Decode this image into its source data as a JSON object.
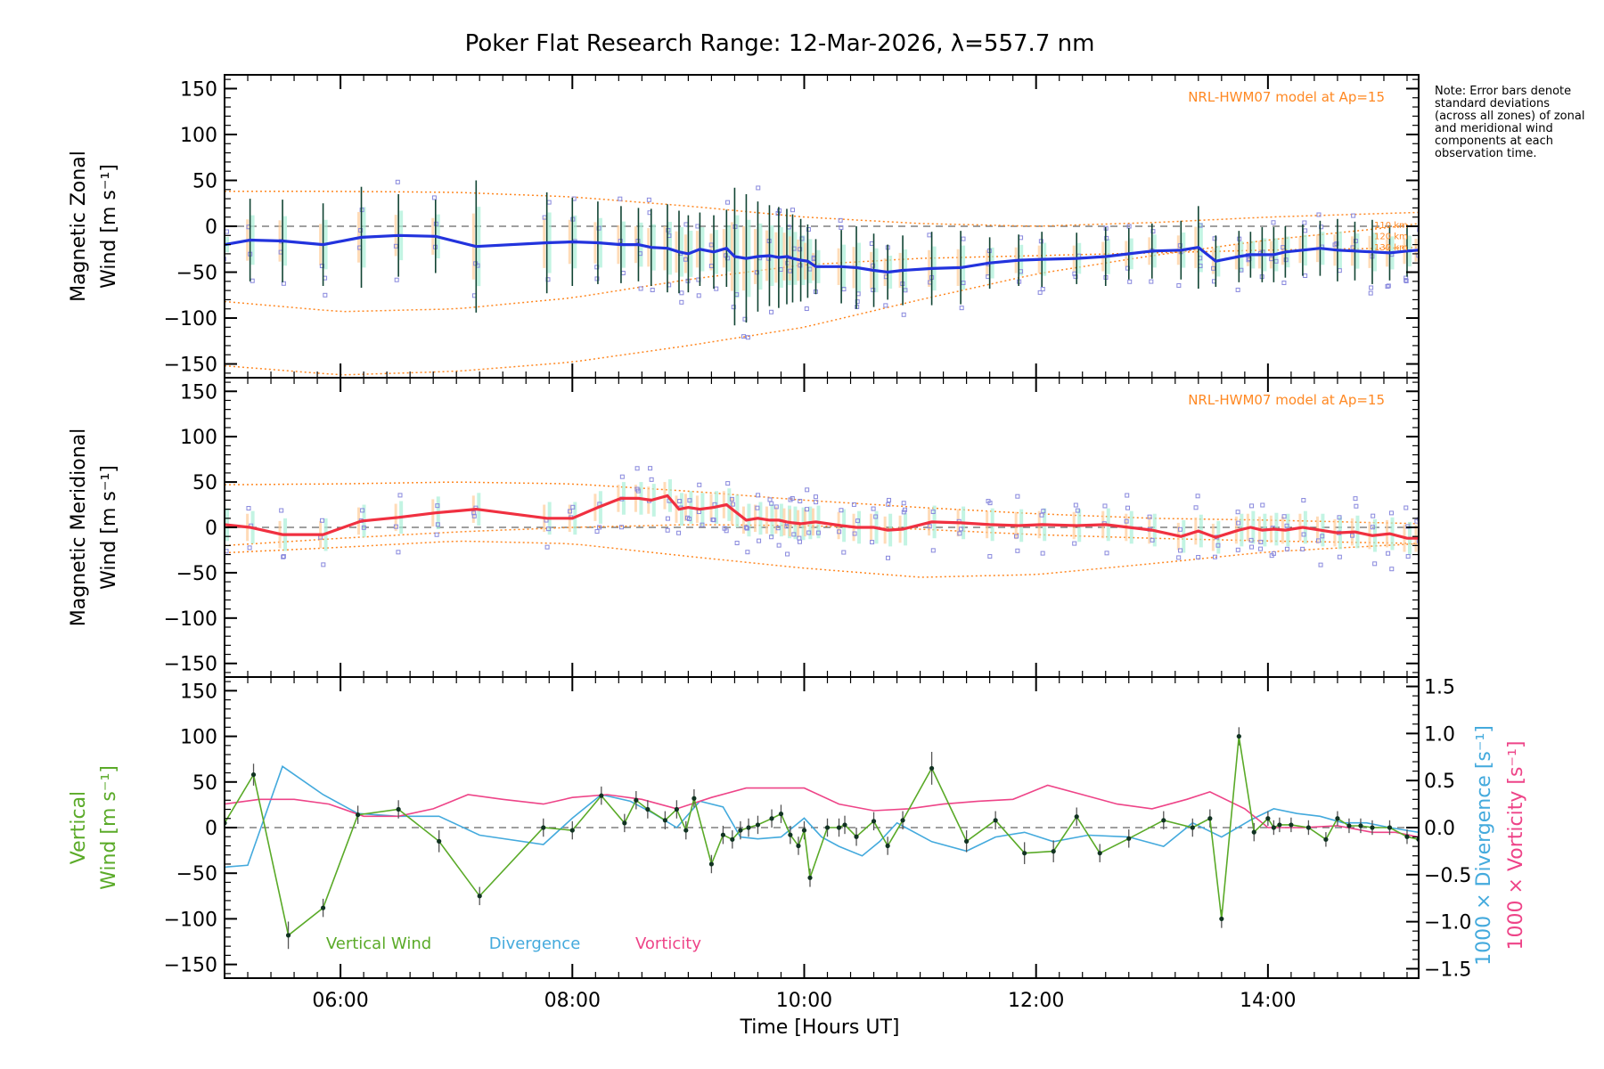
{
  "figure": {
    "title": "Poker Flat Research Range: 12-Mar-2026, λ=557.7 nm",
    "note": "Note: Error bars denote standard deviations (across all zones) of zonal and meridional wind components at each observation time.",
    "x_axis_title": "Time [Hours UT]",
    "colors": {
      "zonal": "#2233dd",
      "meridional": "#f03040",
      "vertical": "#5aaa28",
      "divergence": "#44aadd",
      "vorticity": "#ee4488",
      "model": "#ff8822",
      "scatter": "#8888dd",
      "errorbar": "#114433"
    }
  },
  "chart_data": [
    {
      "type": "line",
      "panel": "zonal",
      "ylabel": [
        "Magnetic Zonal",
        "Wind [m s⁻¹]"
      ],
      "annotation": "NRL-HWM07 model at Ap=15",
      "model_level_labels": [
        "110 km",
        "120 km",
        "130 km"
      ],
      "xlim": [
        5.0,
        15.3
      ],
      "ylim": [
        -165,
        165
      ],
      "x_ticks": [
        "06:00",
        "08:00",
        "10:00",
        "12:00",
        "14:00"
      ],
      "y_ticks": [
        -150,
        -100,
        -50,
        0,
        50,
        100,
        150
      ],
      "series": [
        {
          "name": "Zonal wind",
          "x": [
            5.0,
            5.22,
            5.5,
            5.85,
            6.18,
            6.5,
            6.82,
            7.17,
            7.78,
            8.0,
            8.22,
            8.42,
            8.57,
            8.68,
            8.82,
            8.92,
            9.0,
            9.1,
            9.22,
            9.33,
            9.4,
            9.5,
            9.6,
            9.7,
            9.78,
            9.85,
            9.9,
            9.97,
            10.03,
            10.1,
            10.32,
            10.45,
            10.6,
            10.72,
            10.85,
            11.1,
            11.35,
            11.6,
            11.85,
            12.05,
            12.35,
            12.6,
            12.8,
            13.0,
            13.25,
            13.4,
            13.55,
            13.75,
            13.85,
            13.95,
            14.05,
            14.15,
            14.3,
            14.45,
            14.6,
            14.75,
            14.9,
            15.05,
            15.2,
            15.3
          ],
          "y": [
            -20,
            -15,
            -16,
            -20,
            -12,
            -10,
            -11,
            -22,
            -18,
            -17,
            -18,
            -20,
            -20,
            -23,
            -24,
            -28,
            -30,
            -25,
            -28,
            -24,
            -33,
            -35,
            -33,
            -32,
            -34,
            -33,
            -35,
            -37,
            -38,
            -44,
            -44,
            -45,
            -48,
            -50,
            -48,
            -46,
            -45,
            -40,
            -37,
            -36,
            -35,
            -33,
            -30,
            -27,
            -26,
            -23,
            -38,
            -33,
            -31,
            -31,
            -31,
            -28,
            -26,
            -24,
            -26,
            -27,
            -28,
            -29,
            -27,
            -26
          ],
          "errors": [
            14,
            45,
            45,
            45,
            55,
            45,
            40,
            72,
            55,
            48,
            45,
            42,
            40,
            42,
            48,
            45,
            42,
            40,
            40,
            42,
            75,
            70,
            60,
            55,
            55,
            52,
            48,
            45,
            40,
            30,
            40,
            45,
            40,
            30,
            38,
            40,
            40,
            28,
            28,
            30,
            28,
            32,
            28,
            30,
            32,
            45,
            28,
            28,
            25,
            30,
            30,
            28,
            28,
            30,
            34,
            32,
            35,
            30,
            28,
            25
          ]
        },
        {
          "name": "NRL-HWM07 model (110 km)",
          "x": [
            5.0,
            6.0,
            7.0,
            8.0,
            9.0,
            10.0,
            11.0,
            12.0,
            13.0,
            14.0,
            15.0,
            15.3
          ],
          "y": [
            38,
            38,
            37,
            32,
            22,
            10,
            3,
            0,
            4,
            10,
            14,
            15
          ]
        },
        {
          "name": "NRL-HWM07 model (120 km)",
          "x": [
            5.0,
            6.0,
            7.0,
            8.0,
            9.0,
            10.0,
            11.0,
            12.0,
            13.0,
            14.0,
            15.0,
            15.3
          ],
          "y": [
            -82,
            -93,
            -90,
            -78,
            -58,
            -42,
            -35,
            -32,
            -29,
            -26,
            -24,
            -23
          ]
        },
        {
          "name": "NRL-HWM07 model (130 km)",
          "x": [
            5.0,
            6.0,
            7.0,
            8.0,
            9.0,
            10.0,
            11.0,
            12.0,
            13.0,
            14.0,
            15.0,
            15.3
          ],
          "y": [
            -152,
            -162,
            -158,
            -148,
            -130,
            -110,
            -80,
            -52,
            -32,
            -15,
            -2,
            3
          ]
        }
      ]
    },
    {
      "type": "line",
      "panel": "meridional",
      "ylabel": [
        "Magnetic Meridional",
        "Wind [m s⁻¹]"
      ],
      "annotation": "NRL-HWM07 model at Ap=15",
      "xlim": [
        5.0,
        15.3
      ],
      "ylim": [
        -165,
        165
      ],
      "y_ticks": [
        -150,
        -100,
        -50,
        0,
        50,
        100,
        150
      ],
      "series": [
        {
          "name": "Meridional wind",
          "x": [
            5.0,
            5.22,
            5.5,
            5.85,
            6.18,
            6.5,
            6.82,
            7.17,
            7.78,
            8.0,
            8.22,
            8.42,
            8.57,
            8.68,
            8.82,
            8.92,
            9.0,
            9.1,
            9.22,
            9.33,
            9.4,
            9.5,
            9.6,
            9.7,
            9.78,
            9.85,
            9.9,
            9.97,
            10.03,
            10.1,
            10.32,
            10.45,
            10.6,
            10.72,
            10.85,
            11.1,
            11.35,
            11.6,
            11.85,
            12.05,
            12.35,
            12.6,
            12.8,
            13.0,
            13.25,
            13.4,
            13.55,
            13.75,
            13.85,
            13.95,
            14.05,
            14.15,
            14.3,
            14.45,
            14.6,
            14.75,
            14.9,
            15.05,
            15.2,
            15.3
          ],
          "y": [
            3,
            0,
            -8,
            -8,
            7,
            11,
            16,
            20,
            10,
            10,
            22,
            32,
            32,
            30,
            35,
            20,
            22,
            20,
            22,
            25,
            18,
            8,
            10,
            8,
            8,
            6,
            5,
            4,
            5,
            6,
            2,
            0,
            0,
            -3,
            -2,
            6,
            5,
            3,
            2,
            3,
            2,
            3,
            0,
            -3,
            -10,
            -4,
            -11,
            -3,
            0,
            -3,
            -2,
            -3,
            0,
            -3,
            -6,
            -5,
            -9,
            -7,
            -12,
            -12
          ]
        },
        {
          "name": "NRL-HWM07 model (110 km)",
          "x": [
            5.0,
            6.0,
            7.0,
            8.0,
            9.0,
            10.0,
            11.0,
            12.0,
            13.0,
            14.0,
            15.0,
            15.3
          ],
          "y": [
            47,
            48,
            50,
            48,
            40,
            30,
            22,
            15,
            10,
            8,
            5,
            4
          ]
        },
        {
          "name": "NRL-HWM07 model (120 km)",
          "x": [
            5.0,
            6.0,
            7.0,
            8.0,
            9.0,
            10.0,
            11.0,
            12.0,
            13.0,
            14.0,
            15.0,
            15.3
          ],
          "y": [
            -20,
            -12,
            -5,
            0,
            3,
            2,
            -2,
            -8,
            -12,
            -15,
            -17,
            -18
          ]
        },
        {
          "name": "NRL-HWM07 model (130 km)",
          "x": [
            5.0,
            6.0,
            7.0,
            8.0,
            9.0,
            10.0,
            11.0,
            12.0,
            13.0,
            14.0,
            15.0,
            15.3
          ],
          "y": [
            -28,
            -22,
            -15,
            -18,
            -32,
            -45,
            -55,
            -52,
            -40,
            -27,
            -20,
            -18
          ]
        }
      ]
    },
    {
      "type": "line",
      "panel": "vertical",
      "ylabel": [
        "Vertical",
        "Wind [m s⁻¹]"
      ],
      "right_ylabel_divergence": "1000 × Divergence [s⁻¹]",
      "right_ylabel_vorticity": "1000 × Vorticity [s⁻¹]",
      "legend": [
        "Vertical Wind",
        "Divergence",
        "Vorticity"
      ],
      "xlim": [
        5.0,
        15.3
      ],
      "ylim": [
        -165,
        165
      ],
      "y_ticks": [
        -150,
        -100,
        -50,
        0,
        50,
        100,
        150
      ],
      "y2lim": [
        -1.6,
        1.6
      ],
      "y2_ticks": [
        "1.5",
        "1.0",
        "0.5",
        "0.0",
        "-0.5",
        "-1.0",
        "-1.5"
      ],
      "series": [
        {
          "name": "Vertical Wind",
          "axis": "left",
          "x": [
            5.0,
            5.25,
            5.55,
            5.85,
            6.15,
            6.5,
            6.85,
            7.2,
            7.75,
            8.0,
            8.25,
            8.45,
            8.55,
            8.65,
            8.8,
            8.9,
            8.98,
            9.05,
            9.2,
            9.3,
            9.38,
            9.45,
            9.52,
            9.6,
            9.72,
            9.8,
            9.88,
            9.95,
            10.0,
            10.05,
            10.2,
            10.3,
            10.35,
            10.45,
            10.6,
            10.72,
            10.85,
            11.1,
            11.4,
            11.65,
            11.9,
            12.15,
            12.35,
            12.55,
            12.8,
            13.1,
            13.35,
            13.5,
            13.6,
            13.75,
            13.88,
            14.0,
            14.05,
            14.1,
            14.2,
            14.35,
            14.5,
            14.6,
            14.7,
            14.8,
            14.9,
            15.05,
            15.2,
            15.3
          ],
          "y": [
            5,
            58,
            -118,
            -88,
            14,
            20,
            -15,
            -75,
            0,
            -3,
            35,
            5,
            30,
            20,
            8,
            20,
            -3,
            32,
            -40,
            -8,
            -13,
            -3,
            0,
            3,
            10,
            15,
            -8,
            -20,
            -3,
            -55,
            0,
            0,
            3,
            -10,
            7,
            -20,
            8,
            65,
            -15,
            8,
            -28,
            -26,
            12,
            -28,
            -12,
            8,
            0,
            10,
            -100,
            100,
            -5,
            10,
            0,
            3,
            3,
            0,
            -13,
            10,
            2,
            2,
            0,
            0,
            -10,
            -13
          ],
          "errors": [
            8,
            12,
            15,
            10,
            10,
            10,
            12,
            10,
            10,
            10,
            10,
            10,
            10,
            10,
            10,
            10,
            10,
            10,
            10,
            10,
            10,
            10,
            10,
            10,
            10,
            10,
            10,
            10,
            10,
            10,
            10,
            10,
            10,
            10,
            10,
            10,
            10,
            18,
            12,
            10,
            12,
            12,
            10,
            10,
            10,
            10,
            10,
            10,
            10,
            10,
            10,
            8,
            8,
            8,
            8,
            8,
            8,
            8,
            8,
            8,
            8,
            8,
            8,
            8
          ]
        },
        {
          "name": "Divergence",
          "axis": "right",
          "x": [
            5.0,
            5.2,
            5.5,
            5.85,
            6.15,
            6.5,
            6.85,
            7.2,
            7.75,
            8.0,
            8.25,
            8.5,
            8.7,
            8.9,
            9.1,
            9.3,
            9.45,
            9.6,
            9.8,
            10.0,
            10.15,
            10.3,
            10.5,
            10.65,
            10.8,
            11.1,
            11.4,
            11.65,
            11.9,
            12.15,
            12.45,
            12.8,
            13.1,
            13.35,
            13.6,
            13.85,
            14.05,
            14.25,
            14.45,
            14.65,
            14.85,
            15.05,
            15.3
          ],
          "y": [
            -0.42,
            -0.4,
            0.65,
            0.35,
            0.15,
            0.12,
            0.12,
            -0.08,
            -0.18,
            0.1,
            0.35,
            0.28,
            0.15,
            0.0,
            0.28,
            0.22,
            -0.1,
            -0.12,
            -0.1,
            0.1,
            -0.1,
            -0.2,
            -0.3,
            -0.15,
            0.05,
            -0.15,
            -0.25,
            -0.1,
            -0.05,
            -0.15,
            -0.08,
            -0.1,
            -0.2,
            0.05,
            -0.1,
            0.08,
            0.2,
            0.15,
            0.12,
            0.05,
            0.05,
            0.0,
            -0.05
          ]
        },
        {
          "name": "Vorticity",
          "axis": "right",
          "x": [
            5.0,
            5.3,
            5.6,
            5.9,
            6.2,
            6.5,
            6.8,
            7.1,
            7.4,
            7.75,
            8.0,
            8.3,
            8.6,
            8.9,
            9.2,
            9.5,
            9.8,
            10.0,
            10.3,
            10.6,
            10.9,
            11.2,
            11.5,
            11.8,
            12.1,
            12.4,
            12.7,
            13.0,
            13.3,
            13.5,
            13.8,
            14.0,
            14.3,
            14.6,
            14.9,
            15.1,
            15.3
          ],
          "y": [
            0.25,
            0.3,
            0.3,
            0.25,
            0.12,
            0.12,
            0.2,
            0.35,
            0.3,
            0.25,
            0.32,
            0.35,
            0.3,
            0.2,
            0.32,
            0.42,
            0.42,
            0.42,
            0.25,
            0.18,
            0.2,
            0.25,
            0.28,
            0.3,
            0.45,
            0.35,
            0.25,
            0.2,
            0.3,
            0.38,
            0.2,
            0.0,
            0.0,
            0.02,
            -0.05,
            -0.05,
            -0.1
          ]
        }
      ]
    }
  ]
}
